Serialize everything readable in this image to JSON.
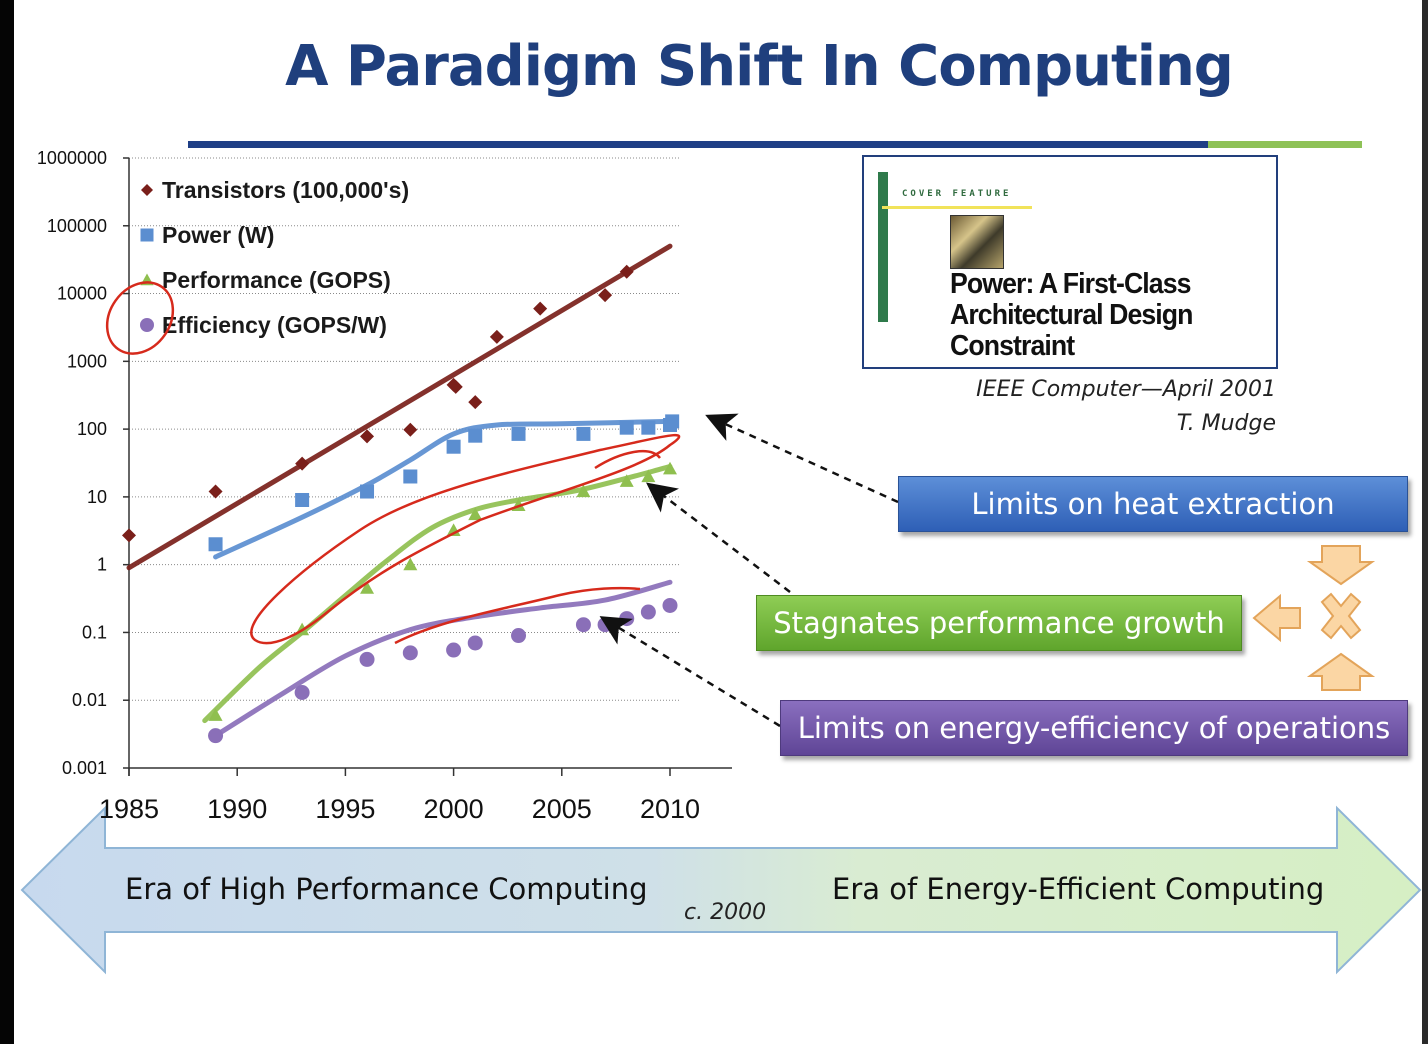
{
  "slide": {
    "title": "A Paradigm Shift In Computing",
    "colors": {
      "title": "#1f3f7d",
      "rule_blue": "#1f3f86",
      "rule_green": "#8ec257"
    }
  },
  "chart_data": {
    "type": "scatter",
    "title": "",
    "xlabel": "",
    "ylabel": "",
    "y_scale": "log",
    "xlim": [
      1985,
      2010
    ],
    "ylim": [
      0.001,
      1000000
    ],
    "x_ticks": [
      "1985",
      "1990",
      "1995",
      "2000",
      "2005",
      "2010"
    ],
    "y_ticks": [
      "1000000",
      "100000",
      "10000",
      "1000",
      "100",
      "10",
      "1",
      "0.1",
      "0.01",
      "0.001"
    ],
    "grid": "horizontal dotted",
    "legend_position": "top-left",
    "series": [
      {
        "name": "Transistors (100,000's)",
        "marker": "diamond",
        "color": "#7a1f1a",
        "points": [
          [
            1985,
            2.7
          ],
          [
            1989,
            12
          ],
          [
            1993,
            31
          ],
          [
            1996,
            78
          ],
          [
            1998,
            98
          ],
          [
            2000,
            450
          ],
          [
            2000.1,
            420
          ],
          [
            2001,
            250
          ],
          [
            2002,
            2300
          ],
          [
            2004,
            6000
          ],
          [
            2007,
            9500
          ],
          [
            2008,
            21000
          ]
        ],
        "trend": [
          [
            1985,
            0.9
          ],
          [
            2010,
            50000
          ]
        ]
      },
      {
        "name": "Power (W)",
        "marker": "square",
        "color": "#5b8ed0",
        "points": [
          [
            1989,
            2
          ],
          [
            1993,
            9
          ],
          [
            1996,
            12
          ],
          [
            1998,
            20
          ],
          [
            2000,
            55
          ],
          [
            2001,
            80
          ],
          [
            2003,
            85
          ],
          [
            2006,
            85
          ],
          [
            2008,
            105
          ],
          [
            2009,
            105
          ],
          [
            2010,
            115
          ],
          [
            2010.1,
            130
          ]
        ],
        "trend": [
          [
            1989,
            1.3
          ],
          [
            1993,
            5
          ],
          [
            1996,
            15
          ],
          [
            1998,
            35
          ],
          [
            2000,
            85
          ],
          [
            2002,
            115
          ],
          [
            2005,
            120
          ],
          [
            2010,
            130
          ]
        ]
      },
      {
        "name": "Performance (GOPS)",
        "marker": "triangle",
        "color": "#8fbf4f",
        "points": [
          [
            1989,
            0.006
          ],
          [
            1993,
            0.11
          ],
          [
            1996,
            0.45
          ],
          [
            1998,
            1
          ],
          [
            2000,
            3.2
          ],
          [
            2001,
            5.5
          ],
          [
            2003,
            7.5
          ],
          [
            2006,
            12
          ],
          [
            2008,
            17
          ],
          [
            2009,
            20
          ],
          [
            2010,
            26
          ]
        ],
        "trend": [
          [
            1988.5,
            0.005
          ],
          [
            1991,
            0.03
          ],
          [
            1993,
            0.1
          ],
          [
            1995,
            0.35
          ],
          [
            1997,
            1.2
          ],
          [
            1999,
            3.5
          ],
          [
            2001,
            6.5
          ],
          [
            2003,
            9
          ],
          [
            2006,
            13
          ],
          [
            2010,
            28
          ]
        ]
      },
      {
        "name": "Efficiency (GOPS/W)",
        "marker": "circle",
        "color": "#8a6fb8",
        "points": [
          [
            1989,
            0.003
          ],
          [
            1993,
            0.013
          ],
          [
            1996,
            0.04
          ],
          [
            1998,
            0.05
          ],
          [
            2000,
            0.055
          ],
          [
            2001,
            0.07
          ],
          [
            2003,
            0.09
          ],
          [
            2006,
            0.13
          ],
          [
            2007,
            0.13
          ],
          [
            2008,
            0.16
          ],
          [
            2009,
            0.2
          ],
          [
            2010,
            0.25
          ]
        ],
        "trend": [
          [
            1989,
            0.003
          ],
          [
            1992,
            0.012
          ],
          [
            1995,
            0.045
          ],
          [
            1998,
            0.11
          ],
          [
            2001,
            0.17
          ],
          [
            2004,
            0.23
          ],
          [
            2007,
            0.3
          ],
          [
            2010,
            0.55
          ]
        ]
      }
    ]
  },
  "cover": {
    "kicker": "COVER FEATURE",
    "title_lines": [
      "Power: A First-Class",
      "Architectural Design",
      "Constraint"
    ]
  },
  "citation": {
    "journal": "IEEE Computer—April 2001",
    "author": "T. Mudge"
  },
  "callouts": {
    "heat": "Limits on heat extraction",
    "performance": "Stagnates performance growth",
    "energy": "Limits on energy-efficiency of operations"
  },
  "era": {
    "left": "Era of High Performance Computing",
    "right": "Era of Energy-Efficient Computing",
    "divider": "c. 2000"
  }
}
